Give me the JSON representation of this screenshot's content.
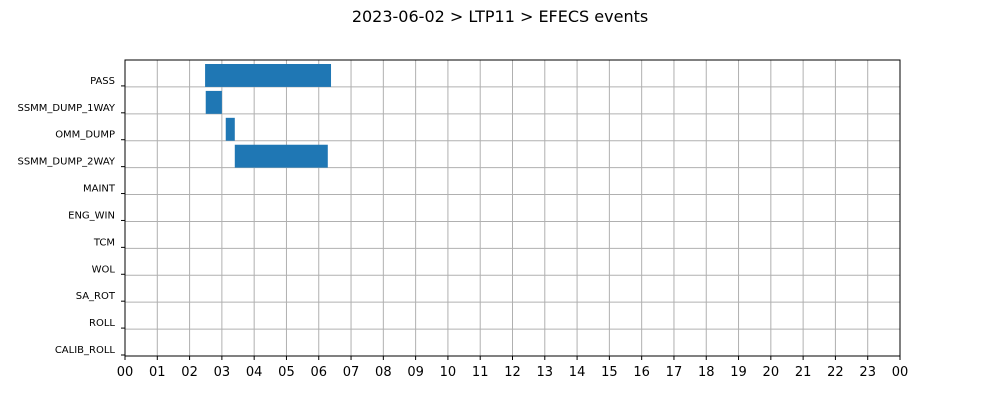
{
  "chart_data": {
    "type": "bar",
    "orientation": "horizontal-timeline",
    "title": "2023-06-02 > LTP11 > EFECS events",
    "xlabel": "",
    "ylabel": "",
    "categories": [
      "PASS",
      "SSMM_DUMP_1WAY",
      "OMM_DUMP",
      "SSMM_DUMP_2WAY",
      "MAINT",
      "ENG_WIN",
      "TCM",
      "WOL",
      "SA_ROT",
      "ROLL",
      "CALIB_ROLL"
    ],
    "xlim": [
      0,
      24
    ],
    "x_tick_labels": [
      "00",
      "01",
      "02",
      "03",
      "04",
      "05",
      "06",
      "07",
      "08",
      "09",
      "10",
      "11",
      "12",
      "13",
      "14",
      "15",
      "16",
      "17",
      "18",
      "19",
      "20",
      "21",
      "22",
      "23",
      "00"
    ],
    "grid": true,
    "bar_color": "#1f77b4",
    "events": [
      {
        "category": "PASS",
        "start": 2.48,
        "end": 6.38
      },
      {
        "category": "SSMM_DUMP_1WAY",
        "start": 2.5,
        "end": 3.0
      },
      {
        "category": "OMM_DUMP",
        "start": 3.12,
        "end": 3.4
      },
      {
        "category": "SSMM_DUMP_2WAY",
        "start": 3.4,
        "end": 6.28
      }
    ]
  }
}
